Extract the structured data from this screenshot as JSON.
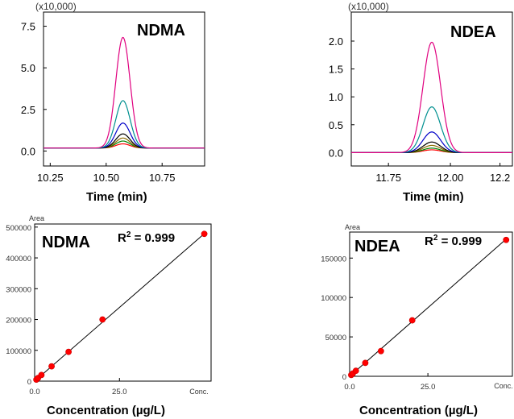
{
  "chart_data": [
    {
      "type": "line",
      "compound": "NDMA",
      "multiplier_label": "(x10,000)",
      "xlabel": "Time (min)",
      "xlim": [
        10.22,
        10.94
      ],
      "ylim": [
        -0.9,
        8.35
      ],
      "x_ticks": [
        "10.25",
        "10.50",
        "10.75"
      ],
      "y_ticks": [
        "0.0",
        "2.5",
        "5.0",
        "7.5"
      ],
      "peak_center": 10.575,
      "peak_width": 0.045,
      "baseline": 0.18,
      "series": [
        {
          "color": "#e0007f",
          "peak_height": 6.65
        },
        {
          "color": "#009090",
          "peak_height": 2.85
        },
        {
          "color": "#0000c8",
          "peak_height": 1.5
        },
        {
          "color": "#000000",
          "peak_height": 0.85
        },
        {
          "color": "#8b6b00",
          "peak_height": 0.6
        },
        {
          "color": "#008000",
          "peak_height": 0.42
        },
        {
          "color": "#ff0000",
          "peak_height": 0.25
        }
      ]
    },
    {
      "type": "line",
      "compound": "NDEA",
      "multiplier_label": "(x10,000)",
      "xlabel": "Time (min)",
      "xlim": [
        11.6,
        12.25
      ],
      "ylim": [
        -0.24,
        2.52
      ],
      "x_ticks": [
        "11.75",
        "12.00",
        "12.2"
      ],
      "y_ticks": [
        "0.0",
        "0.5",
        "1.0",
        "1.5",
        "2.0"
      ],
      "peak_center": 11.925,
      "peak_width": 0.05,
      "baseline": 0.0,
      "series": [
        {
          "color": "#e0007f",
          "peak_height": 1.98
        },
        {
          "color": "#009090",
          "peak_height": 0.82
        },
        {
          "color": "#0000c8",
          "peak_height": 0.37
        },
        {
          "color": "#000000",
          "peak_height": 0.19
        },
        {
          "color": "#8b6b00",
          "peak_height": 0.13
        },
        {
          "color": "#008000",
          "peak_height": 0.08
        },
        {
          "color": "#ff0000",
          "peak_height": 0.05
        }
      ]
    },
    {
      "type": "scatter",
      "compound": "NDMA",
      "r2_prefix": "R",
      "r2_sup": "2",
      "r2_value": "= 0.999",
      "area_label": "Area",
      "conc_label": "Conc.",
      "xlabel": "Concentration (µg/L)",
      "xlim": [
        0,
        52
      ],
      "ylim": [
        0,
        510000
      ],
      "x_ticks": [
        "0.0",
        "25.0"
      ],
      "y_ticks": [
        "0",
        "100000",
        "200000",
        "300000",
        "400000",
        "500000"
      ],
      "x": [
        0.5,
        1,
        2,
        5,
        10,
        20,
        50
      ],
      "y": [
        5000,
        10000,
        20000,
        48000,
        95000,
        200000,
        478000
      ],
      "fit": {
        "slope": 9570,
        "intercept": 0
      }
    },
    {
      "type": "scatter",
      "compound": "NDEA",
      "r2_prefix": "R",
      "r2_sup": "2",
      "r2_value": "= 0.999",
      "area_label": "Area",
      "conc_label": "Conc.",
      "xlabel": "Concentration (µg/L)",
      "xlim": [
        0,
        52
      ],
      "ylim": [
        0,
        183000
      ],
      "x_ticks": [
        "0.0",
        "25.0"
      ],
      "y_ticks": [
        "0",
        "50000",
        "100000",
        "150000"
      ],
      "x": [
        0.5,
        1,
        2,
        5,
        10,
        20,
        50
      ],
      "y": [
        1700,
        3500,
        7000,
        17000,
        32000,
        71000,
        173000
      ],
      "fit": {
        "slope": 3480,
        "intercept": 0
      }
    }
  ]
}
